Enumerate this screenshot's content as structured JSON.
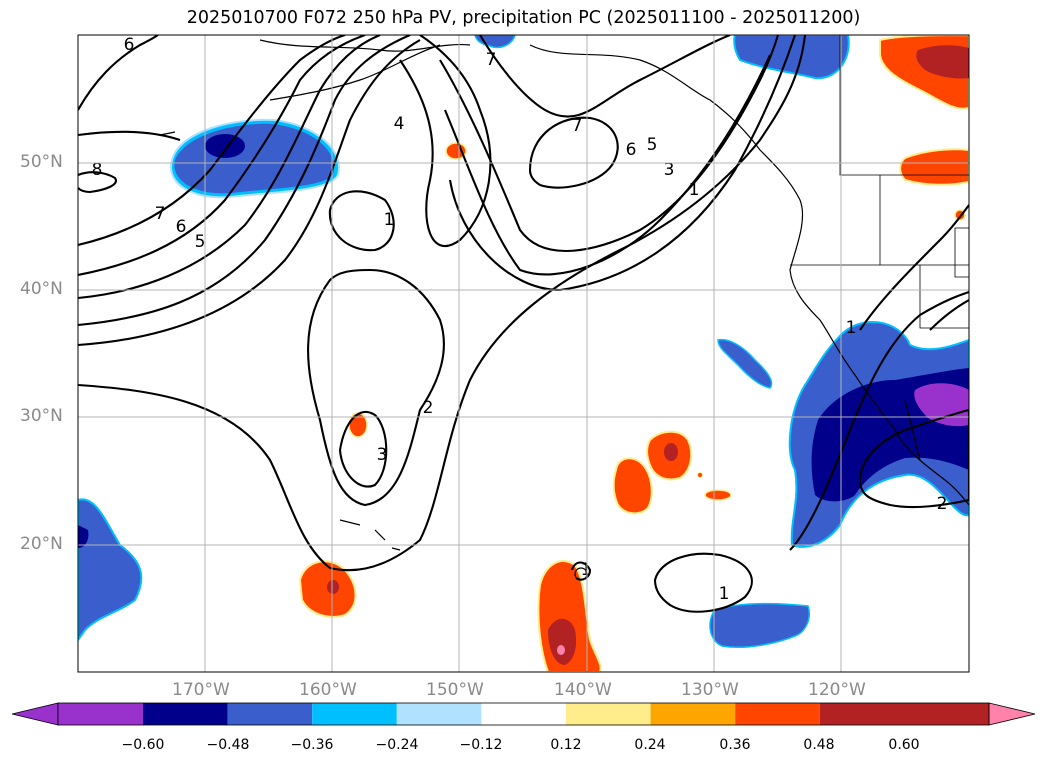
{
  "title": "2025010700 F072 250 hPa PV, precipitation PC (2025011100 - 2025011200)",
  "lat_labels": [
    "50°N",
    "40°N",
    "30°N",
    "20°N"
  ],
  "lon_labels": [
    "170°W",
    "160°W",
    "150°W",
    "140°W",
    "130°W",
    "120°W"
  ],
  "contour_labels": [
    "6",
    "8",
    "7",
    "6",
    "5",
    "4",
    "1",
    "7",
    "7",
    "6",
    "5",
    "3",
    "1",
    "2",
    "3",
    "1",
    "1",
    "2",
    "1"
  ],
  "colorbar": {
    "ticks": [
      "−0.60",
      "−0.48",
      "−0.36",
      "−0.24",
      "−0.12",
      "0.12",
      "0.24",
      "0.36",
      "0.48",
      "0.60"
    ],
    "colors": [
      "#9932cc",
      "#00008b",
      "#3a5fcd",
      "#00bfff",
      "#b0e2ff",
      "#ffffff",
      "#ffec8b",
      "#ffa500",
      "#ff4500",
      "#b22222",
      "#ff82ab"
    ]
  },
  "colors": {
    "pv_contour": "#000000",
    "coastline": "#000000",
    "grid": "#b4b4b4",
    "axis_label": "#8a8a8a"
  }
}
